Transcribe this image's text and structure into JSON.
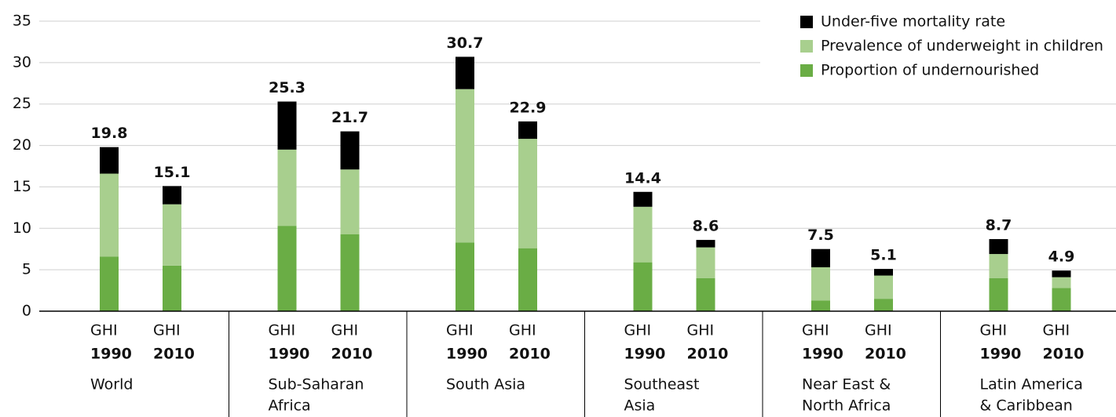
{
  "chart_data": {
    "type": "stacked_bar",
    "ylim": [
      0,
      35
    ],
    "yticks": [
      0,
      5,
      10,
      15,
      20,
      25,
      30,
      35
    ],
    "grid": true,
    "legend": "upper right",
    "groups": [
      [
        "World"
      ],
      [
        "Sub-Saharan",
        "Africa"
      ],
      [
        "South Asia"
      ],
      [
        "Southeast",
        "Asia"
      ],
      [
        "Near East &",
        "North Africa"
      ],
      [
        "Latin America",
        "& Caribbean"
      ]
    ],
    "categories": [
      [
        "GHI",
        "1990"
      ],
      [
        "GHI",
        "2010"
      ],
      [
        "GHI",
        "1990"
      ],
      [
        "GHI",
        "2010"
      ],
      [
        "GHI",
        "1990"
      ],
      [
        "GHI",
        "2010"
      ],
      [
        "GHI",
        "1990"
      ],
      [
        "GHI",
        "2010"
      ],
      [
        "GHI",
        "1990"
      ],
      [
        "GHI",
        "2010"
      ],
      [
        "GHI",
        "1990"
      ],
      [
        "GHI",
        "2010"
      ]
    ],
    "series": [
      {
        "name": "Proportion of undernourished",
        "color": "#6aad45",
        "values": [
          6.6,
          5.5,
          10.3,
          9.3,
          8.3,
          7.6,
          5.9,
          4.0,
          1.3,
          1.5,
          4.0,
          2.8
        ]
      },
      {
        "name": "Prevalence of underweight in children",
        "color": "#a8cf8e",
        "values": [
          10.0,
          7.4,
          9.2,
          7.8,
          18.5,
          13.2,
          6.7,
          3.7,
          4.0,
          2.8,
          2.9,
          1.3
        ]
      },
      {
        "name": "Under-five mortality rate",
        "color": "#000000",
        "values": [
          3.2,
          2.2,
          5.8,
          4.6,
          3.9,
          2.1,
          1.8,
          0.9,
          2.2,
          0.8,
          1.8,
          0.8
        ]
      }
    ],
    "totals": [
      19.8,
      15.1,
      25.3,
      21.7,
      30.7,
      22.9,
      14.4,
      8.6,
      7.5,
      5.1,
      8.7,
      4.9
    ]
  }
}
